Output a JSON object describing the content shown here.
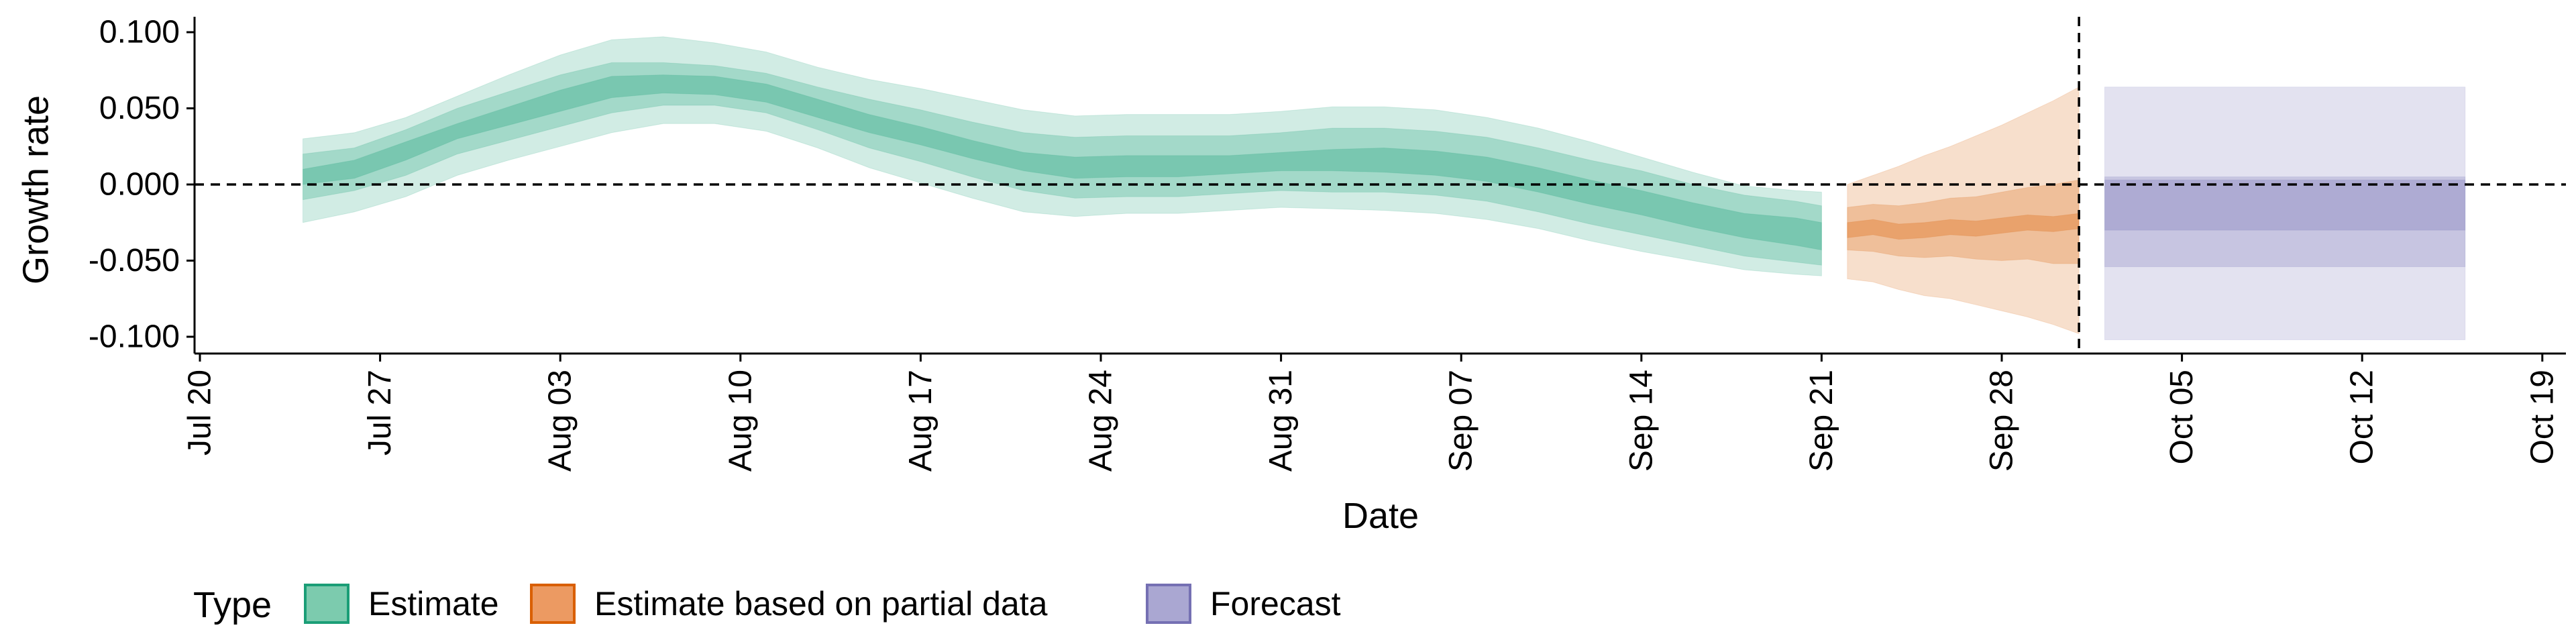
{
  "chart_data": {
    "type": "area",
    "xlabel": "Date",
    "ylabel": "Growth rate",
    "x_range": [
      "2020-07-20",
      "2020-10-20"
    ],
    "ylim": [
      -0.108,
      0.108
    ],
    "x_ticks": [
      {
        "date": "2020-07-20",
        "label": "Jul 20"
      },
      {
        "date": "2020-07-27",
        "label": "Jul 27"
      },
      {
        "date": "2020-08-03",
        "label": "Aug 03"
      },
      {
        "date": "2020-08-10",
        "label": "Aug 10"
      },
      {
        "date": "2020-08-17",
        "label": "Aug 17"
      },
      {
        "date": "2020-08-24",
        "label": "Aug 24"
      },
      {
        "date": "2020-08-31",
        "label": "Aug 31"
      },
      {
        "date": "2020-09-07",
        "label": "Sep 07"
      },
      {
        "date": "2020-09-14",
        "label": "Sep 14"
      },
      {
        "date": "2020-09-21",
        "label": "Sep 21"
      },
      {
        "date": "2020-09-28",
        "label": "Sep 28"
      },
      {
        "date": "2020-10-05",
        "label": "Oct 05"
      },
      {
        "date": "2020-10-12",
        "label": "Oct 12"
      },
      {
        "date": "2020-10-19",
        "label": "Oct 19"
      }
    ],
    "y_ticks": [
      {
        "value": 0.1,
        "label": "0.100"
      },
      {
        "value": 0.05,
        "label": "0.050"
      },
      {
        "value": 0.0,
        "label": "0.000"
      },
      {
        "value": -0.05,
        "label": "-0.050"
      },
      {
        "value": -0.1,
        "label": "-0.100"
      }
    ],
    "reference_lines": {
      "horizontal_y": 0.0,
      "vertical_date": "2020-10-01"
    },
    "legend": {
      "title": "Type",
      "position": "bottom-left",
      "items": [
        {
          "label": "Estimate",
          "fill": "#7ccbae",
          "stroke": "#1b9e77"
        },
        {
          "label": "Estimate based on partial data",
          "fill": "#ec9a62",
          "stroke": "#d95f02"
        },
        {
          "label": "Forecast",
          "fill": "#aaa7d2",
          "stroke": "#7570b3"
        }
      ]
    },
    "series": [
      {
        "name": "Estimate",
        "color": "#1b9e77",
        "dates": [
          "2020-07-24",
          "2020-07-26",
          "2020-07-28",
          "2020-07-30",
          "2020-08-01",
          "2020-08-03",
          "2020-08-05",
          "2020-08-07",
          "2020-08-09",
          "2020-08-11",
          "2020-08-13",
          "2020-08-15",
          "2020-08-17",
          "2020-08-19",
          "2020-08-21",
          "2020-08-23",
          "2020-08-25",
          "2020-08-27",
          "2020-08-29",
          "2020-08-31",
          "2020-09-02",
          "2020-09-04",
          "2020-09-06",
          "2020-09-08",
          "2020-09-10",
          "2020-09-12",
          "2020-09-14",
          "2020-09-16",
          "2020-09-18",
          "2020-09-20",
          "2020-09-21"
        ],
        "median": [
          0.005,
          0.01,
          0.022,
          0.035,
          0.045,
          0.055,
          0.064,
          0.066,
          0.065,
          0.06,
          0.05,
          0.04,
          0.032,
          0.023,
          0.015,
          0.011,
          0.012,
          0.012,
          0.013,
          0.015,
          0.016,
          0.016,
          0.014,
          0.01,
          0.003,
          -0.005,
          -0.012,
          -0.02,
          -0.027,
          -0.031,
          -0.034
        ],
        "lower_20": [
          0.0,
          0.004,
          0.016,
          0.03,
          0.039,
          0.048,
          0.057,
          0.06,
          0.059,
          0.054,
          0.044,
          0.034,
          0.026,
          0.017,
          0.009,
          0.004,
          0.005,
          0.005,
          0.007,
          0.009,
          0.009,
          0.008,
          0.006,
          0.002,
          -0.005,
          -0.013,
          -0.02,
          -0.028,
          -0.035,
          -0.04,
          -0.043
        ],
        "upper_20": [
          0.01,
          0.016,
          0.028,
          0.04,
          0.051,
          0.062,
          0.071,
          0.072,
          0.071,
          0.066,
          0.056,
          0.046,
          0.038,
          0.029,
          0.021,
          0.018,
          0.019,
          0.019,
          0.019,
          0.021,
          0.023,
          0.024,
          0.022,
          0.018,
          0.011,
          0.003,
          -0.004,
          -0.012,
          -0.019,
          -0.022,
          -0.025
        ],
        "lower_50": [
          -0.01,
          -0.004,
          0.006,
          0.02,
          0.029,
          0.038,
          0.047,
          0.052,
          0.052,
          0.047,
          0.036,
          0.024,
          0.015,
          0.005,
          -0.004,
          -0.009,
          -0.008,
          -0.008,
          -0.006,
          -0.004,
          -0.005,
          -0.005,
          -0.007,
          -0.011,
          -0.018,
          -0.026,
          -0.033,
          -0.04,
          -0.047,
          -0.051,
          -0.053
        ],
        "upper_50": [
          0.02,
          0.024,
          0.036,
          0.05,
          0.061,
          0.072,
          0.08,
          0.08,
          0.078,
          0.073,
          0.064,
          0.056,
          0.049,
          0.041,
          0.034,
          0.031,
          0.032,
          0.032,
          0.032,
          0.034,
          0.037,
          0.037,
          0.035,
          0.031,
          0.024,
          0.016,
          0.009,
          0.0,
          -0.007,
          -0.011,
          -0.014
        ],
        "lower_90": [
          -0.025,
          -0.018,
          -0.008,
          0.006,
          0.016,
          0.025,
          0.034,
          0.04,
          0.04,
          0.035,
          0.024,
          0.011,
          0.001,
          -0.009,
          -0.018,
          -0.021,
          -0.019,
          -0.019,
          -0.017,
          -0.015,
          -0.016,
          -0.017,
          -0.019,
          -0.023,
          -0.029,
          -0.037,
          -0.044,
          -0.05,
          -0.056,
          -0.059,
          -0.06
        ],
        "upper_90": [
          0.03,
          0.034,
          0.044,
          0.058,
          0.072,
          0.085,
          0.095,
          0.097,
          0.093,
          0.087,
          0.077,
          0.069,
          0.063,
          0.056,
          0.049,
          0.045,
          0.046,
          0.046,
          0.046,
          0.048,
          0.051,
          0.051,
          0.049,
          0.044,
          0.037,
          0.028,
          0.018,
          0.008,
          -0.001,
          -0.004,
          -0.005
        ]
      },
      {
        "name": "Estimate based on partial data",
        "color": "#d95f02",
        "dates": [
          "2020-09-22",
          "2020-09-23",
          "2020-09-24",
          "2020-09-25",
          "2020-09-26",
          "2020-09-27",
          "2020-09-28",
          "2020-09-29",
          "2020-09-30",
          "2020-10-01"
        ],
        "median": [
          -0.03,
          -0.028,
          -0.031,
          -0.03,
          -0.028,
          -0.029,
          -0.027,
          -0.025,
          -0.026,
          -0.024
        ],
        "lower_20": [
          -0.035,
          -0.033,
          -0.036,
          -0.035,
          -0.033,
          -0.034,
          -0.032,
          -0.03,
          -0.031,
          -0.029
        ],
        "upper_20": [
          -0.025,
          -0.023,
          -0.026,
          -0.025,
          -0.023,
          -0.024,
          -0.022,
          -0.02,
          -0.021,
          -0.019
        ],
        "lower_50": [
          -0.043,
          -0.044,
          -0.047,
          -0.048,
          -0.047,
          -0.049,
          -0.05,
          -0.049,
          -0.052,
          -0.052
        ],
        "upper_50": [
          -0.015,
          -0.013,
          -0.014,
          -0.012,
          -0.009,
          -0.008,
          -0.005,
          -0.002,
          0.0,
          0.003
        ],
        "lower_90": [
          -0.062,
          -0.064,
          -0.069,
          -0.073,
          -0.075,
          -0.079,
          -0.083,
          -0.087,
          -0.092,
          -0.098
        ],
        "upper_90": [
          0.0,
          0.006,
          0.012,
          0.019,
          0.025,
          0.032,
          0.039,
          0.047,
          0.055,
          0.064
        ]
      },
      {
        "name": "Forecast",
        "color": "#7570b3",
        "dates": [
          "2020-10-02",
          "2020-10-16"
        ],
        "median": [
          -0.013,
          -0.013
        ],
        "lower_20": [
          -0.03,
          -0.03
        ],
        "upper_20": [
          0.003,
          0.003
        ],
        "lower_50": [
          -0.054,
          -0.054
        ],
        "upper_50": [
          0.005,
          0.005
        ],
        "lower_90": [
          -0.102,
          -0.102
        ],
        "upper_90": [
          0.064,
          0.064
        ]
      }
    ]
  }
}
